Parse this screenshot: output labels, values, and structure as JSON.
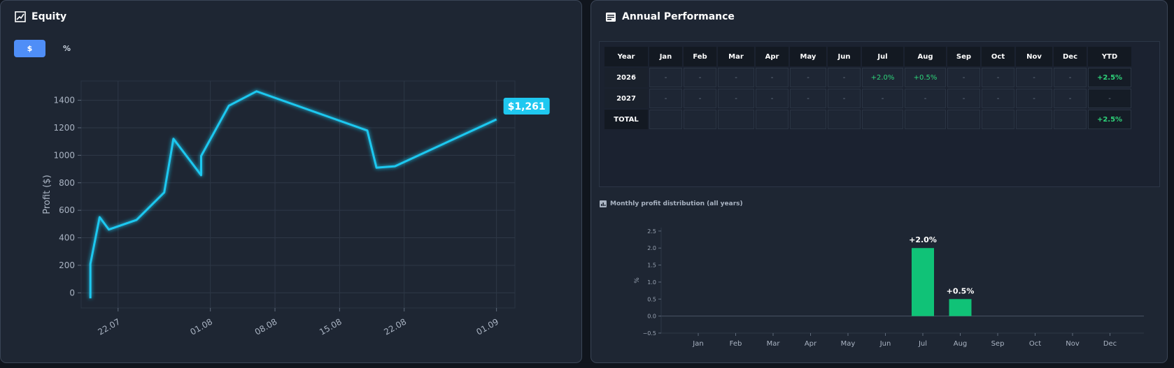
{
  "equity": {
    "title": "Equity",
    "icon": "chart-checkbox-icon",
    "tabs": [
      {
        "label": "$",
        "active": true
      },
      {
        "label": "%",
        "active": false
      }
    ],
    "last_value_label": "$1,261",
    "accent": "#1fc8f0"
  },
  "annual": {
    "title": "Annual Performance",
    "icon": "calendar-table-icon",
    "table": {
      "headers": [
        "Year",
        "Jan",
        "Feb",
        "Mar",
        "Apr",
        "May",
        "Jun",
        "Jul",
        "Aug",
        "Sep",
        "Oct",
        "Nov",
        "Dec",
        "YTD"
      ],
      "rows": [
        {
          "year": "2026",
          "values": [
            "-",
            "-",
            "-",
            "-",
            "-",
            "-",
            "+2.0%",
            "+0.5%",
            "-",
            "-",
            "-",
            "-"
          ],
          "ytd": "+2.5%"
        },
        {
          "year": "2027",
          "values": [
            "-",
            "-",
            "-",
            "-",
            "-",
            "-",
            "-",
            "-",
            "-",
            "-",
            "-",
            "-"
          ],
          "ytd": "-"
        }
      ],
      "total": {
        "label": "TOTAL",
        "values": [
          "",
          "",
          "",
          "",
          "",
          "",
          "",
          "",
          "",
          "",
          "",
          ""
        ],
        "ytd": "+2.5%"
      }
    },
    "distribution_title": "Monthly profit distribution (all years)",
    "distribution_icon": "bar-chart-icon"
  },
  "chart_data": [
    {
      "type": "line",
      "title": "",
      "xlabel": "",
      "ylabel": "Profit ($)",
      "x_ticks": [
        "22.07",
        "01.08",
        "08.08",
        "15.08",
        "22.08",
        "01.09"
      ],
      "x": [
        "2025-07-19",
        "2025-07-19",
        "2025-07-20",
        "2025-07-21",
        "2025-07-24",
        "2025-07-27",
        "2025-07-28",
        "2025-07-31",
        "2025-07-31",
        "2025-08-03",
        "2025-08-06",
        "2025-08-18",
        "2025-08-19",
        "2025-08-21",
        "2025-09-01"
      ],
      "y": [
        -40,
        210,
        550,
        460,
        530,
        730,
        1120,
        855,
        995,
        1360,
        1465,
        1180,
        910,
        920,
        1261
      ],
      "ylim": [
        -110,
        1540
      ],
      "y_ticks": [
        0,
        200,
        400,
        600,
        800,
        1000,
        1200,
        1400
      ],
      "grid": true,
      "color": "#1fc8f0"
    },
    {
      "type": "bar",
      "title": "",
      "ylabel": "%",
      "categories": [
        "Jan",
        "Feb",
        "Mar",
        "Apr",
        "May",
        "Jun",
        "Jul",
        "Aug",
        "Sep",
        "Oct",
        "Nov",
        "Dec"
      ],
      "values": [
        0,
        0,
        0,
        0,
        0,
        0,
        2.0,
        0.5,
        0,
        0,
        0,
        0
      ],
      "data_labels": [
        "",
        "",
        "",
        "",
        "",
        "",
        "+2.0%",
        "+0.5%",
        "",
        "",
        "",
        ""
      ],
      "ylim": [
        -0.5,
        2.6
      ],
      "y_ticks": [
        -0.5,
        0.0,
        0.5,
        1.0,
        1.5,
        2.0,
        2.5
      ],
      "y_tick_labels": [
        "−0.5",
        "0.0",
        "0.5",
        "1.0",
        "1.5",
        "2.0",
        "2.5"
      ],
      "color": "#10c277"
    }
  ]
}
